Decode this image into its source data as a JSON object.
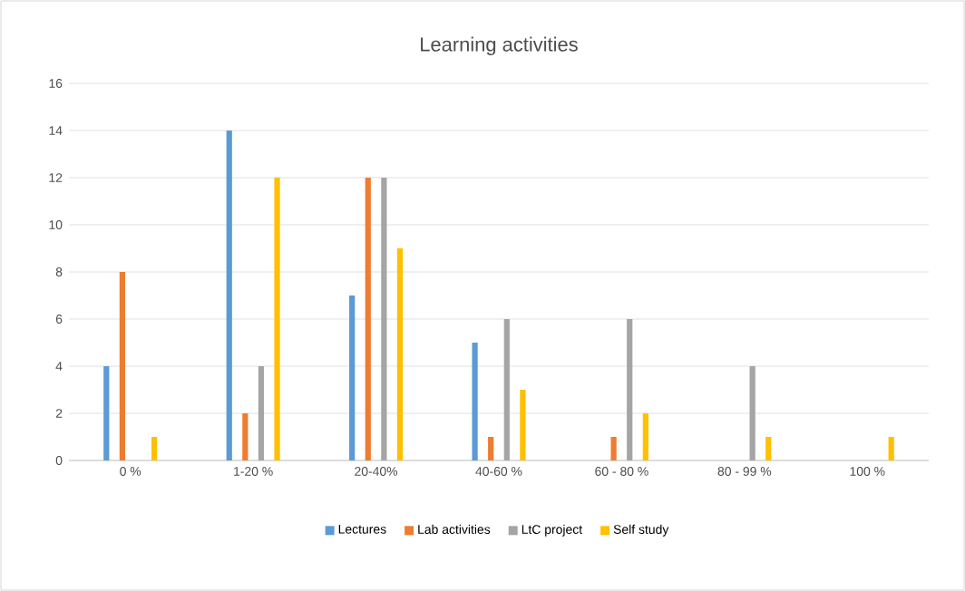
{
  "chart_data": {
    "type": "bar",
    "title": "Learning activities",
    "categories": [
      "0 %",
      "1-20 %",
      "20-40%",
      "40-60 %",
      "60 - 80 %",
      "80 - 99 %",
      "100 %"
    ],
    "series": [
      {
        "name": "Lectures",
        "color": "#5b9bd5",
        "values": [
          4,
          14,
          7,
          5,
          0,
          0,
          0
        ]
      },
      {
        "name": "Lab activities",
        "color": "#ed7d31",
        "values": [
          8,
          2,
          12,
          1,
          1,
          0,
          0
        ]
      },
      {
        "name": "LtC project",
        "color": "#a5a5a5",
        "values": [
          0,
          4,
          12,
          6,
          6,
          4,
          0
        ]
      },
      {
        "name": "Self study",
        "color": "#ffc000",
        "values": [
          1,
          12,
          9,
          3,
          2,
          1,
          1
        ]
      }
    ],
    "ylim": [
      0,
      16
    ],
    "yticks": [
      0,
      2,
      4,
      6,
      8,
      10,
      12,
      14,
      16
    ],
    "grid": "y",
    "legend": "bottom"
  }
}
